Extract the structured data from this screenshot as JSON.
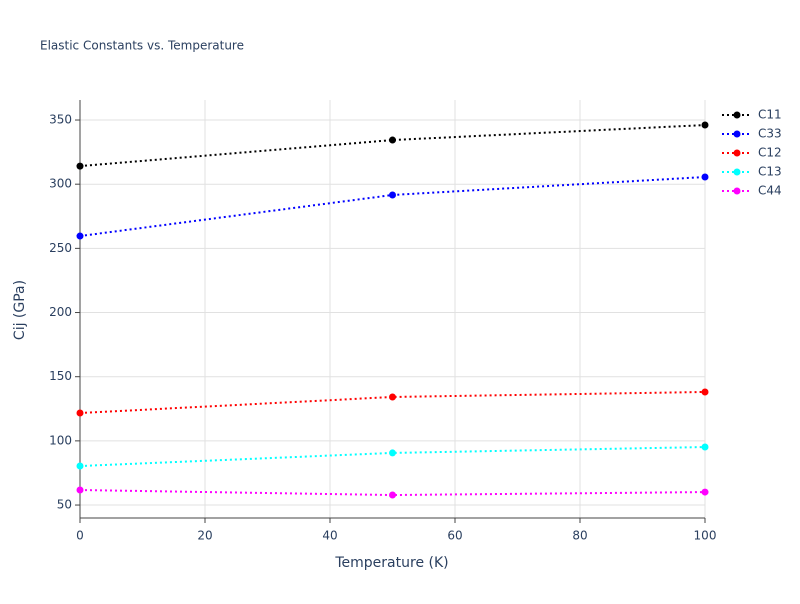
{
  "chart_data": {
    "type": "line",
    "title": "Elastic Constants vs. Temperature",
    "x_label": "Temperature (K)",
    "y_label": "Cij (GPa)",
    "x": [
      0,
      50,
      100
    ],
    "series": [
      {
        "name": "C11",
        "color": "#000000",
        "values": [
          314.1,
          334.4,
          346.1
        ]
      },
      {
        "name": "C33",
        "color": "#0000ff",
        "values": [
          259.6,
          291.6,
          305.6
        ]
      },
      {
        "name": "C12",
        "color": "#ff0000",
        "values": [
          121.7,
          134.2,
          138.1
        ]
      },
      {
        "name": "C13",
        "color": "#00ffff",
        "values": [
          80.4,
          90.6,
          95.2
        ]
      },
      {
        "name": "C44",
        "color": "#ff00ff",
        "values": [
          61.7,
          57.8,
          60.1
        ]
      }
    ],
    "xlim": [
      0,
      100
    ],
    "xticks": [
      0,
      20,
      40,
      60,
      80,
      100
    ],
    "ylim": [
      39.9,
      365.6
    ],
    "yticks": [
      50,
      100,
      150,
      200,
      250,
      300,
      350
    ],
    "grid": true,
    "legend": "right"
  }
}
